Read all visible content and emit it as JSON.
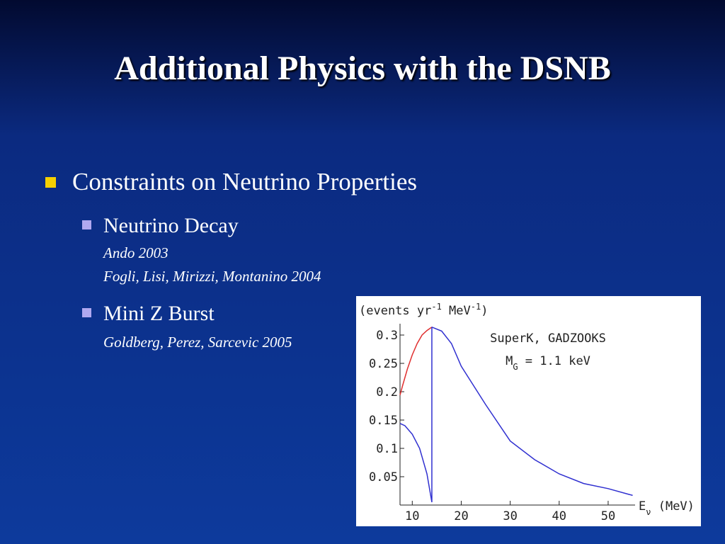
{
  "slide": {
    "title": "Additional Physics with the DSNB",
    "bullet": "Constraints on Neutrino Properties",
    "items": [
      {
        "text": "Neutrino Decay",
        "refs": [
          "Ando 2003",
          "Fogli, Lisi, Mirizzi, Montanino 2004"
        ]
      },
      {
        "text": "Mini Z Burst",
        "refs": [
          "Goldberg, Perez, Sarcevic 2005"
        ]
      }
    ]
  },
  "chart_data": {
    "type": "line",
    "ylabel": [
      {
        "text": "(events yr"
      },
      {
        "text": "-1",
        "sup": true
      },
      {
        "text": " MeV"
      },
      {
        "text": "-1",
        "sup": true
      },
      {
        "text": ")"
      }
    ],
    "xlabel": [
      {
        "text": "E"
      },
      {
        "text": "ν",
        "sub": true
      },
      {
        "text": " (MeV)"
      }
    ],
    "annotations": [
      [
        {
          "text": "SuperK, GADZOOKS"
        }
      ],
      [
        {
          "text": "M"
        },
        {
          "text": "G",
          "sub": true
        },
        {
          "text": " = 1.1 keV"
        }
      ]
    ],
    "xlim": [
      7.5,
      55.5
    ],
    "ylim": [
      0,
      0.32
    ],
    "xticks": [
      10,
      20,
      30,
      40,
      50
    ],
    "yticks": [
      0.05,
      0.1,
      0.15,
      0.2,
      0.25,
      0.3
    ],
    "series": [
      {
        "color": "#e03030",
        "x": [
          7.5,
          8,
          9,
          10,
          11,
          12,
          13,
          14
        ],
        "values": [
          0.194,
          0.21,
          0.24,
          0.265,
          0.285,
          0.3,
          0.308,
          0.314
        ]
      },
      {
        "color": "#3030d0",
        "x": [
          14,
          16,
          18,
          20,
          25,
          30,
          35,
          40,
          45,
          50,
          55
        ],
        "values": [
          0.314,
          0.307,
          0.285,
          0.245,
          0.177,
          0.113,
          0.08,
          0.055,
          0.038,
          0.029,
          0.017
        ]
      },
      {
        "color": "#3030d0",
        "x": [
          7.5,
          8.5,
          10,
          11.5,
          13,
          14,
          14
        ],
        "values": [
          0.144,
          0.14,
          0.125,
          0.1,
          0.055,
          0.005,
          0.314
        ]
      }
    ]
  }
}
